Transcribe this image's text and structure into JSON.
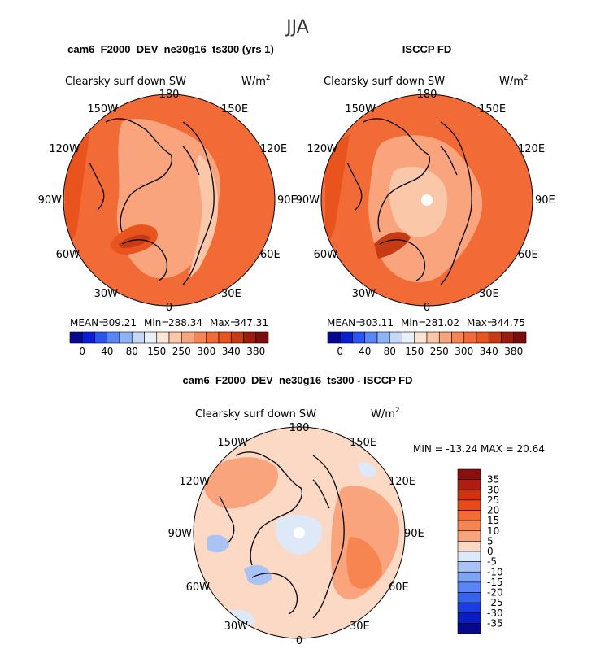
{
  "chart_data": {
    "type": "polar-map",
    "season": "JJA",
    "variable": "Clearsky surf down SW",
    "units_base": "W/m",
    "units_exp": "2",
    "longitude_labels": [
      "180",
      "150E",
      "120E",
      "90E",
      "60E",
      "30E",
      "0",
      "30W",
      "60W",
      "90W",
      "120W",
      "150W"
    ],
    "panels": [
      {
        "title": "cam6_F2000_DEV_ne30g16_ts300 (yrs 1)",
        "stats": {
          "mean_label": "MEAN=",
          "mean": "309.21",
          "min_label": "Min=",
          "min": "288.34",
          "max_label": "Max=",
          "max": "347.31"
        },
        "colorbar_ticks": [
          "0",
          "40",
          "80",
          "150",
          "250",
          "300",
          "340",
          "380"
        ],
        "colors": [
          "#08088f",
          "#0a1ed2",
          "#2b55f0",
          "#5a86f5",
          "#8fb3f7",
          "#c5d8f6",
          "#eaf0f8",
          "#fde5d6",
          "#fbc7a9",
          "#f9a47c",
          "#f68552",
          "#f26a35",
          "#e8531e",
          "#c73b14",
          "#9c1b0e",
          "#7a0d0d"
        ]
      },
      {
        "title": "ISCCP FD",
        "stats": {
          "mean_label": "MEAN=",
          "mean": "303.11",
          "min_label": "Min=",
          "min": "281.02",
          "max_label": "Max=",
          "max": "344.75"
        },
        "colorbar_ticks": [
          "0",
          "40",
          "80",
          "150",
          "250",
          "300",
          "340",
          "380"
        ],
        "colors": [
          "#08088f",
          "#0a1ed2",
          "#2b55f0",
          "#5a86f5",
          "#8fb3f7",
          "#c5d8f6",
          "#eaf0f8",
          "#fde5d6",
          "#fbc7a9",
          "#f9a47c",
          "#f68552",
          "#f26a35",
          "#e8531e",
          "#c73b14",
          "#9c1b0e",
          "#7a0d0d"
        ]
      },
      {
        "title": "cam6_F2000_DEV_ne30g16_ts300 - ISCCP FD",
        "min_max_text": "MIN = -13.24 MAX =  20.64",
        "colorbar_ticks": [
          "35",
          "30",
          "25",
          "20",
          "15",
          "10",
          "5",
          "0",
          "-5",
          "-10",
          "-15",
          "-20",
          "-25",
          "-30",
          "-35"
        ],
        "colors": [
          "#8c0e0e",
          "#b01c10",
          "#d2300f",
          "#ea4a1a",
          "#f26a35",
          "#f68552",
          "#f9a47c",
          "#fcd9c4",
          "#dde8f9",
          "#a9c3f4",
          "#7ea4f2",
          "#5a86f5",
          "#3563f0",
          "#1a3de0",
          "#0a1ec0",
          "#08088f"
        ]
      }
    ]
  }
}
